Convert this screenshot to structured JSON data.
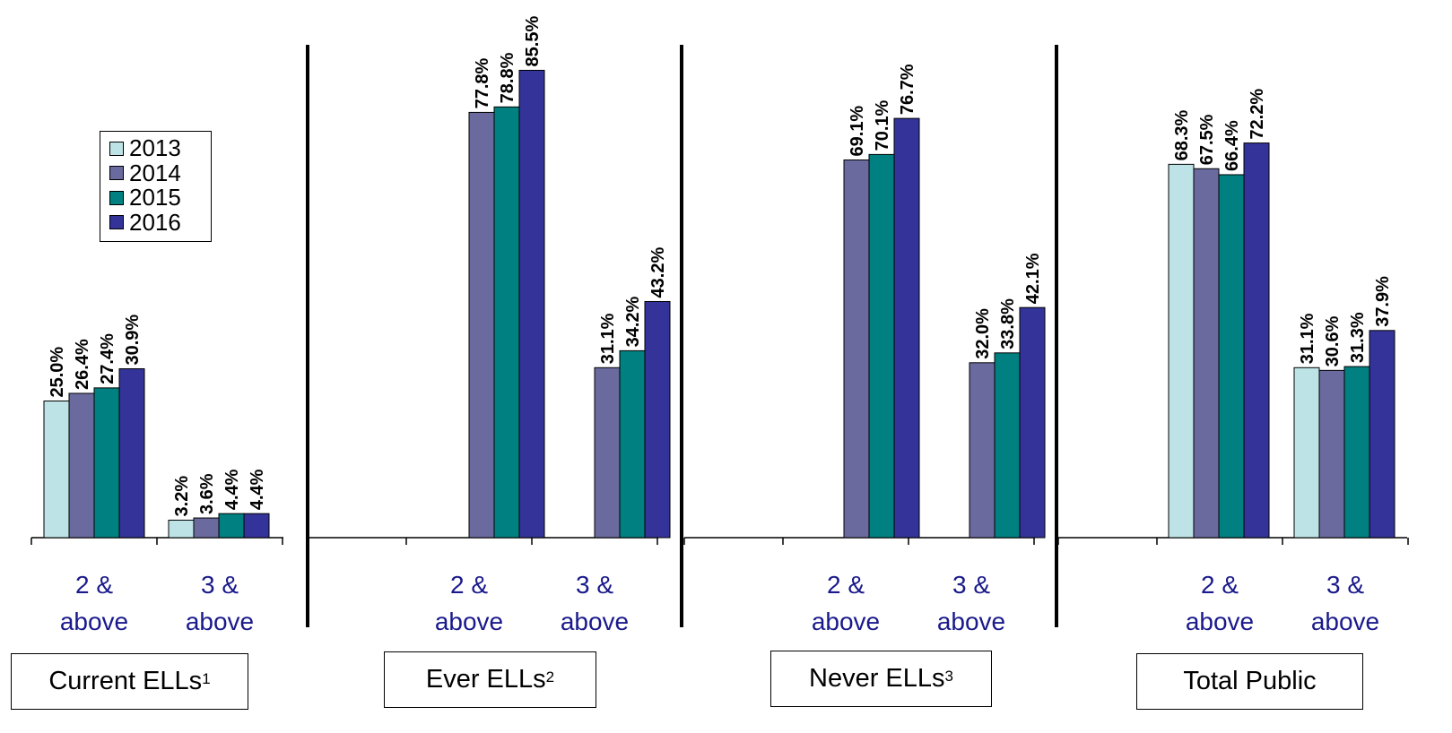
{
  "chart_data": {
    "type": "bar",
    "ylim": [
      0,
      90
    ],
    "legend_position": "top-left",
    "grid": false,
    "series": [
      {
        "name": "2013",
        "color": "#bde3e6"
      },
      {
        "name": "2014",
        "color": "#6a6a9e"
      },
      {
        "name": "2015",
        "color": "#008080"
      },
      {
        "name": "2016",
        "color": "#333399"
      }
    ],
    "groups": [
      {
        "label": "Current ELLs",
        "footnote": "1",
        "categories": [
          {
            "label_line1": "2 &",
            "label_line2": "above",
            "values": [
              25.0,
              26.4,
              27.4,
              30.9
            ],
            "labels": [
              "25.0%",
              "26.4%",
              "27.4%",
              "30.9%"
            ]
          },
          {
            "label_line1": "3 &",
            "label_line2": "above",
            "values": [
              3.2,
              3.6,
              4.4,
              4.4
            ],
            "labels": [
              "3.2%",
              "3.6%",
              "4.4%",
              "4.4%"
            ]
          }
        ]
      },
      {
        "label": "Ever ELLs",
        "footnote": "2",
        "categories": [
          {
            "label_line1": "2 &",
            "label_line2": "above",
            "values": [
              null,
              77.8,
              78.8,
              85.5
            ],
            "labels": [
              "",
              "77.8%",
              "78.8%",
              "85.5%"
            ]
          },
          {
            "label_line1": "3 &",
            "label_line2": "above",
            "values": [
              null,
              31.1,
              34.2,
              43.2
            ],
            "labels": [
              "",
              "31.1%",
              "34.2%",
              "43.2%"
            ]
          }
        ]
      },
      {
        "label": "Never ELLs",
        "footnote": "3",
        "categories": [
          {
            "label_line1": "2 &",
            "label_line2": "above",
            "values": [
              null,
              69.1,
              70.1,
              76.7
            ],
            "labels": [
              "",
              "69.1%",
              "70.1%",
              "76.7%"
            ]
          },
          {
            "label_line1": "3 &",
            "label_line2": "above",
            "values": [
              null,
              32.0,
              33.8,
              42.1
            ],
            "labels": [
              "",
              "32.0%",
              "33.8%",
              "42.1%"
            ]
          }
        ]
      },
      {
        "label": "Total Public",
        "footnote": "",
        "categories": [
          {
            "label_line1": "2 &",
            "label_line2": "above",
            "values": [
              68.3,
              67.5,
              66.4,
              72.2
            ],
            "labels": [
              "68.3%",
              "67.5%",
              "66.4%",
              "72.2%"
            ]
          },
          {
            "label_line1": "3 &",
            "label_line2": "above",
            "values": [
              31.1,
              30.6,
              31.3,
              37.9
            ],
            "labels": [
              "31.1%",
              "30.6%",
              "31.3%",
              "37.9%"
            ]
          }
        ]
      }
    ]
  }
}
